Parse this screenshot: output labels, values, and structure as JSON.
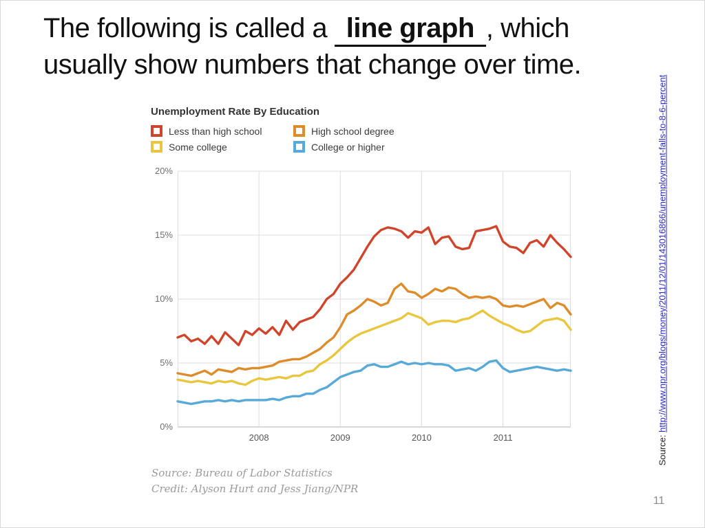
{
  "slide": {
    "title": {
      "prefix": "The following is called a ",
      "blank": "line graph",
      "suffix": ", which",
      "line2": "usually show numbers that change over time."
    },
    "side_source": {
      "label": "Source:",
      "url": "http://www.npr.org/blogs/money/2011/12/01/143016866/unemployment-falls-to-8-6-percent"
    },
    "page_number": "11"
  },
  "chart_data": {
    "type": "line",
    "title": "Unemployment Rate By Education",
    "x_unit": "month",
    "x_range": [
      "2007-01",
      "2011-11"
    ],
    "ylim": [
      0,
      20
    ],
    "grid": true,
    "legend_position": "top-left",
    "y_ticks": [
      {
        "value": 0,
        "label": "0%"
      },
      {
        "value": 5,
        "label": "5%"
      },
      {
        "value": 10,
        "label": "10%"
      },
      {
        "value": 15,
        "label": "15%"
      },
      {
        "value": 20,
        "label": "20%"
      }
    ],
    "year_ticks": [
      {
        "label": "2008",
        "month_index": 12
      },
      {
        "label": "2009",
        "month_index": 24
      },
      {
        "label": "2010",
        "month_index": 36
      },
      {
        "label": "2011",
        "month_index": 48
      }
    ],
    "series": [
      {
        "name": "Less than high school",
        "color": "#d0442b",
        "values": [
          7.0,
          7.2,
          6.7,
          6.9,
          6.5,
          7.1,
          6.5,
          7.4,
          6.9,
          6.4,
          7.5,
          7.2,
          7.7,
          7.3,
          7.8,
          7.2,
          8.3,
          7.6,
          8.2,
          8.4,
          8.6,
          9.2,
          10.0,
          10.4,
          11.2,
          11.7,
          12.3,
          13.2,
          14.1,
          14.9,
          15.4,
          15.6,
          15.5,
          15.3,
          14.8,
          15.3,
          15.2,
          15.6,
          14.3,
          14.8,
          14.9,
          14.1,
          13.9,
          14.0,
          15.3,
          15.4,
          15.5,
          15.7,
          14.5,
          14.1,
          14.0,
          13.6,
          14.4,
          14.6,
          14.1,
          15.0,
          14.4,
          13.9,
          13.3
        ]
      },
      {
        "name": "High school degree",
        "color": "#dd8c29",
        "values": [
          4.2,
          4.1,
          4.0,
          4.2,
          4.4,
          4.1,
          4.5,
          4.4,
          4.3,
          4.6,
          4.5,
          4.6,
          4.6,
          4.7,
          4.8,
          5.1,
          5.2,
          5.3,
          5.3,
          5.5,
          5.8,
          6.1,
          6.6,
          7.0,
          7.8,
          8.8,
          9.1,
          9.5,
          10.0,
          9.8,
          9.5,
          9.7,
          10.8,
          11.2,
          10.6,
          10.5,
          10.1,
          10.4,
          10.8,
          10.6,
          10.9,
          10.8,
          10.4,
          10.1,
          10.2,
          10.1,
          10.2,
          10.0,
          9.5,
          9.4,
          9.5,
          9.4,
          9.6,
          9.8,
          10.0,
          9.3,
          9.7,
          9.5,
          8.8
        ]
      },
      {
        "name": "Some college",
        "color": "#e9c63e",
        "values": [
          3.7,
          3.6,
          3.5,
          3.6,
          3.5,
          3.4,
          3.6,
          3.5,
          3.6,
          3.4,
          3.3,
          3.6,
          3.8,
          3.7,
          3.8,
          3.9,
          3.8,
          4.0,
          4.0,
          4.3,
          4.4,
          4.9,
          5.2,
          5.6,
          6.1,
          6.6,
          7.0,
          7.3,
          7.5,
          7.7,
          7.9,
          8.1,
          8.3,
          8.5,
          8.9,
          8.7,
          8.5,
          8.0,
          8.2,
          8.3,
          8.3,
          8.2,
          8.4,
          8.5,
          8.8,
          9.1,
          8.7,
          8.4,
          8.1,
          7.9,
          7.6,
          7.4,
          7.5,
          7.9,
          8.3,
          8.4,
          8.5,
          8.3,
          7.6
        ]
      },
      {
        "name": "College or higher",
        "color": "#57a9d8",
        "values": [
          2.0,
          1.9,
          1.8,
          1.9,
          2.0,
          2.0,
          2.1,
          2.0,
          2.1,
          2.0,
          2.1,
          2.1,
          2.1,
          2.1,
          2.2,
          2.1,
          2.3,
          2.4,
          2.4,
          2.6,
          2.6,
          2.9,
          3.1,
          3.5,
          3.9,
          4.1,
          4.3,
          4.4,
          4.8,
          4.9,
          4.7,
          4.7,
          4.9,
          5.1,
          4.9,
          5.0,
          4.9,
          5.0,
          4.9,
          4.9,
          4.8,
          4.4,
          4.5,
          4.6,
          4.4,
          4.7,
          5.1,
          5.2,
          4.6,
          4.3,
          4.4,
          4.5,
          4.6,
          4.7,
          4.6,
          4.5,
          4.4,
          4.5,
          4.4
        ]
      }
    ],
    "source": "Source: Bureau of Labor Statistics",
    "credit": "Credit: Alyson Hurt and Jess Jiang/NPR"
  }
}
